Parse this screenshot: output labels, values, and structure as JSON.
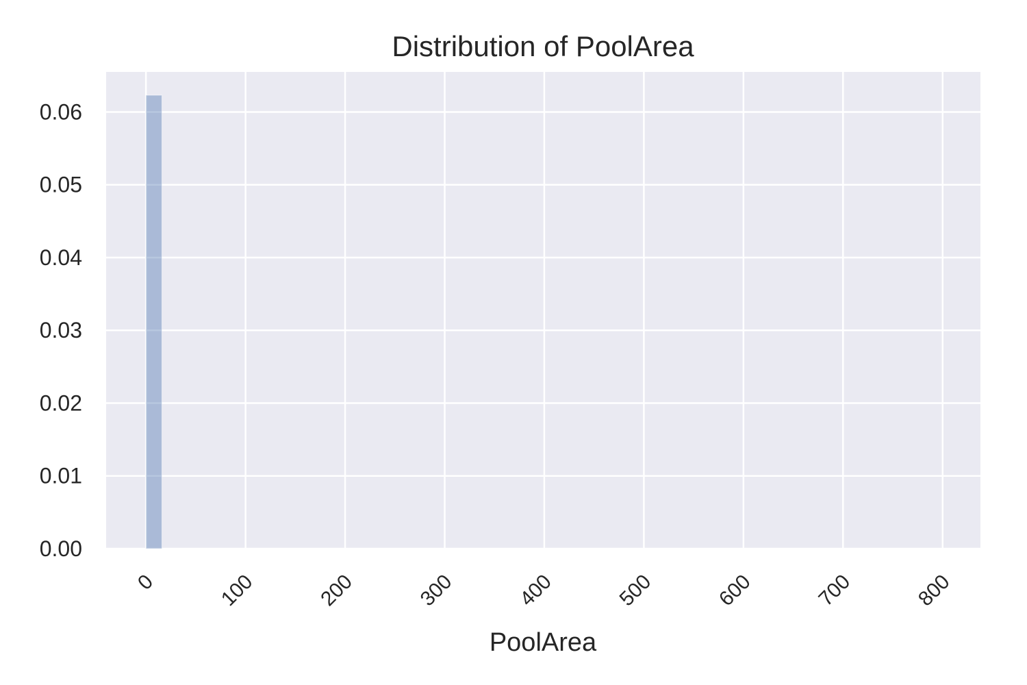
{
  "chart_data": {
    "type": "bar",
    "title": "Distribution of PoolArea",
    "xlabel": "PoolArea",
    "ylabel": "",
    "xlim": [
      -40,
      838
    ],
    "ylim": [
      0,
      0.0655
    ],
    "x_ticks": [
      0,
      100,
      200,
      300,
      400,
      500,
      600,
      700,
      800
    ],
    "y_ticks": [
      0.0,
      0.01,
      0.02,
      0.03,
      0.04,
      0.05,
      0.06
    ],
    "y_tick_labels": [
      "0.00",
      "0.01",
      "0.02",
      "0.03",
      "0.04",
      "0.05",
      "0.06"
    ],
    "grid": true,
    "bar_color": "#4c72b0",
    "background_color": "#eaeaf2",
    "bins": [
      {
        "x0": 0,
        "x1": 16,
        "density": 0.0623
      }
    ]
  }
}
